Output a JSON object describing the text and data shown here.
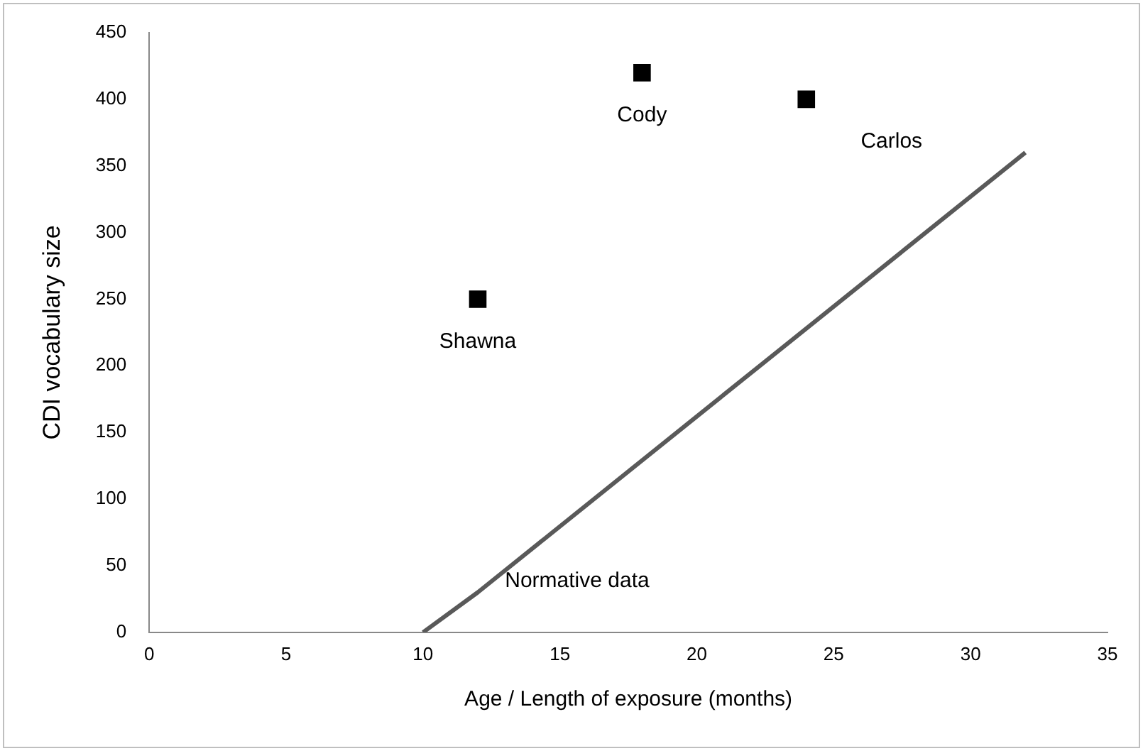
{
  "chart_data": {
    "type": "scatter",
    "xlabel": "Age / Length of exposure (months)",
    "ylabel": "CDI vocabulary size",
    "xlim": [
      0,
      35
    ],
    "xticks": [
      0,
      5,
      10,
      15,
      20,
      25,
      30,
      35
    ],
    "ylim": [
      0,
      450
    ],
    "yticks": [
      0,
      50,
      100,
      150,
      200,
      250,
      300,
      350,
      400,
      450
    ],
    "grid": false,
    "legend": false,
    "marker": "square",
    "series": [
      {
        "name": "Shawna",
        "color": "#000000",
        "x": [
          12
        ],
        "values": [
          250
        ]
      },
      {
        "name": "Cody",
        "color": "#000000",
        "x": [
          18
        ],
        "values": [
          420
        ]
      },
      {
        "name": "Carlos",
        "color": "#000000",
        "x": [
          24
        ],
        "values": [
          400
        ]
      },
      {
        "name": "Normative data",
        "type": "line",
        "color": "#595959",
        "x": [
          10,
          12,
          32
        ],
        "values": [
          0,
          30,
          360
        ],
        "marker": "none"
      }
    ]
  }
}
